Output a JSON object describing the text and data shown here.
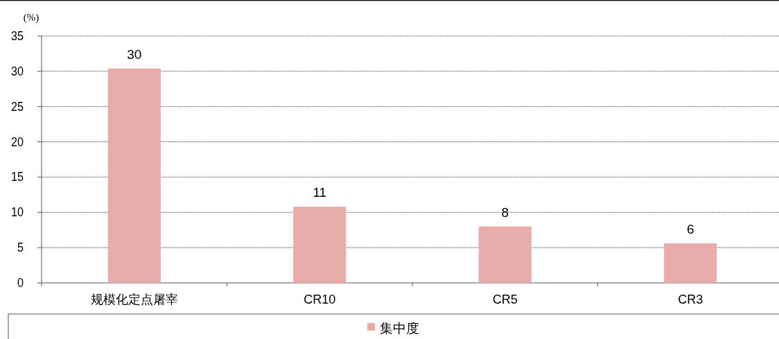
{
  "chart_data": {
    "type": "bar",
    "ylabel": "(%)",
    "categories": [
      "规模化定点屠宰",
      "CR10",
      "CR5",
      "CR3"
    ],
    "series": [
      {
        "name": "集中度",
        "color": "#e8adab",
        "values": [
          30.4,
          10.8,
          8.0,
          5.6
        ],
        "value_labels": [
          "30",
          "11",
          "8",
          "6"
        ]
      }
    ],
    "ylim": [
      0,
      35
    ],
    "yticks": [
      0,
      5,
      10,
      15,
      20,
      25,
      30,
      35
    ],
    "grid": "y",
    "legend": "bottom"
  }
}
